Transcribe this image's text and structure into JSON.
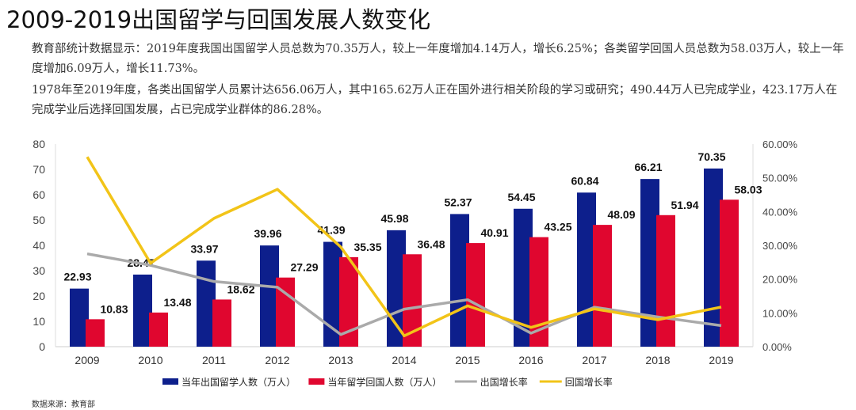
{
  "title": "2009-2019出国留学与回国发展人数变化",
  "paragraphs": [
    "教育部统计数据显示：2019年度我国出国留学人员总数为70.35万人，较上一年度增加4.14万人，增长6.25%；各类留学回国人员总数为58.03万人，较上一年度增加6.09万人，增长11.73%。",
    "1978年至2019年度，各类出国留学人员累计达656.06万人，其中165.62万人正在国外进行相关阶段的学习或研究；490.44万人已完成学业，423.17万人在完成学业后选择回国发展，占已完成学业群体的86.28%。"
  ],
  "source": "数据来源：教育部",
  "chart_data": {
    "type": "bar",
    "categories": [
      "2009",
      "2010",
      "2011",
      "2012",
      "2013",
      "2014",
      "2015",
      "2016",
      "2017",
      "2018",
      "2019"
    ],
    "series": [
      {
        "name": "当年出国留学人数（万人）",
        "kind": "bar",
        "axis": "left",
        "color": "#0d1f8c",
        "values": [
          22.93,
          28.47,
          33.97,
          39.96,
          41.39,
          45.98,
          52.37,
          54.45,
          60.84,
          66.21,
          70.35
        ]
      },
      {
        "name": "当年留学回国人数（万人）",
        "kind": "bar",
        "axis": "left",
        "color": "#e0062f",
        "values": [
          10.83,
          13.48,
          18.62,
          27.29,
          35.35,
          36.48,
          40.91,
          43.25,
          48.09,
          51.94,
          58.03
        ]
      },
      {
        "name": "出国增长率",
        "kind": "line",
        "axis": "right",
        "color": "#aaaaaa",
        "values": [
          27.5,
          24.1,
          19.3,
          17.6,
          3.6,
          11.1,
          13.9,
          4.0,
          11.7,
          8.8,
          6.25
        ]
      },
      {
        "name": "回国增长率",
        "kind": "line",
        "axis": "right",
        "color": "#f2c418",
        "values": [
          56.2,
          24.7,
          38.0,
          46.6,
          29.5,
          3.2,
          12.1,
          5.7,
          11.2,
          8.0,
          11.73
        ]
      }
    ],
    "ylim_left": [
      0,
      80
    ],
    "yticks_left": [
      "0",
      "10",
      "20",
      "30",
      "40",
      "50",
      "60",
      "70",
      "80"
    ],
    "ylim_right": [
      0,
      60
    ],
    "yticks_right": [
      "0.00%",
      "10.00%",
      "20.00%",
      "30.00%",
      "40.00%",
      "50.00%",
      "60.00%"
    ],
    "grid": false,
    "legend": "bottom"
  }
}
